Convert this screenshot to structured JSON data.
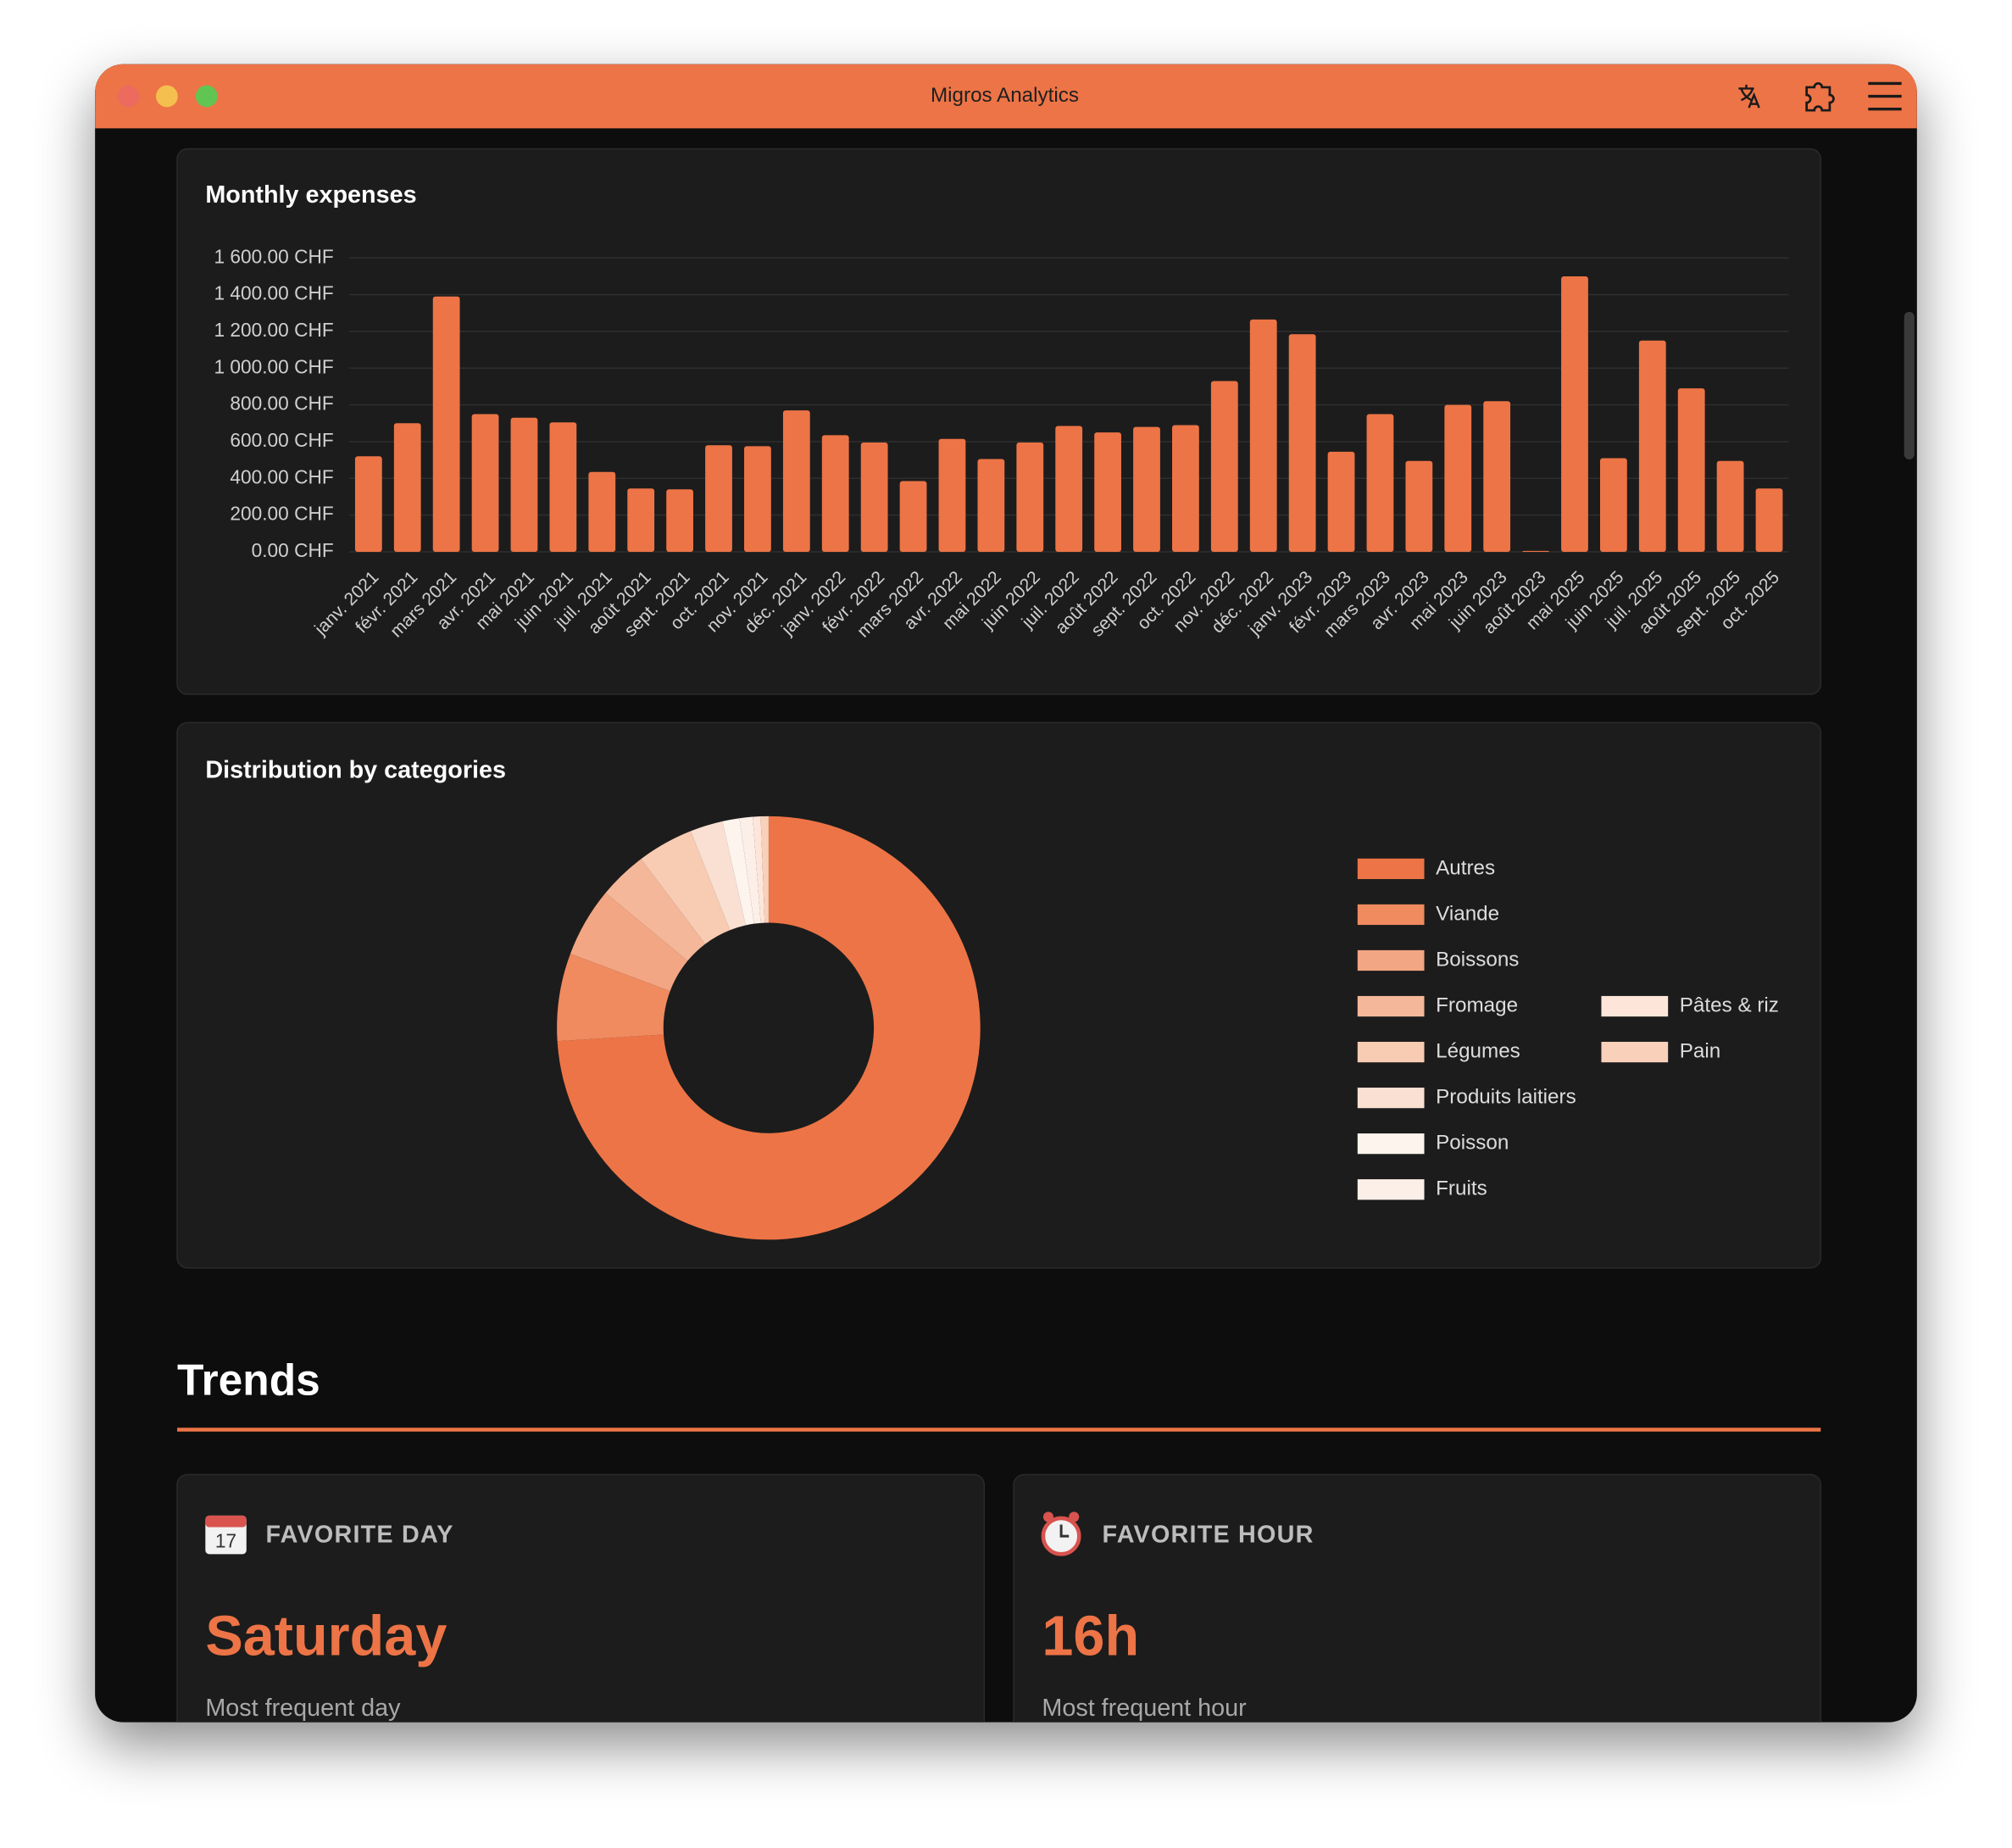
{
  "window": {
    "title": "Migros Analytics"
  },
  "chart_data": [
    {
      "type": "bar",
      "title": "Monthly expenses",
      "categories": [
        "janv. 2021",
        "févr. 2021",
        "mars 2021",
        "avr. 2021",
        "mai 2021",
        "juin 2021",
        "juil. 2021",
        "août 2021",
        "sept. 2021",
        "oct. 2021",
        "nov. 2021",
        "déc. 2021",
        "janv. 2022",
        "févr. 2022",
        "mars 2022",
        "avr. 2022",
        "mai 2022",
        "juin 2022",
        "juil. 2022",
        "août 2022",
        "sept. 2022",
        "oct. 2022",
        "nov. 2022",
        "déc. 2022",
        "janv. 2023",
        "févr. 2023",
        "mars 2023",
        "avr. 2023",
        "mai 2023",
        "juin 2023",
        "août 2023",
        "mai 2025",
        "juin 2025",
        "juil. 2025",
        "août 2025",
        "sept. 2025",
        "oct. 2025"
      ],
      "values": [
        520,
        700,
        1390,
        750,
        730,
        705,
        435,
        345,
        340,
        580,
        575,
        770,
        635,
        595,
        385,
        615,
        505,
        595,
        685,
        650,
        680,
        690,
        930,
        1265,
        1185,
        545,
        750,
        495,
        800,
        820,
        5,
        1500,
        510,
        1150,
        890,
        495,
        345
      ],
      "color": "#ed7446",
      "ylim": [
        0,
        1600
      ],
      "yticks": [
        {
          "value": 0,
          "label": "0.00 CHF"
        },
        {
          "value": 200,
          "label": "200.00 CHF"
        },
        {
          "value": 400,
          "label": "400.00 CHF"
        },
        {
          "value": 600,
          "label": "600.00 CHF"
        },
        {
          "value": 800,
          "label": "800.00 CHF"
        },
        {
          "value": 1000,
          "label": "1 000.00 CHF"
        },
        {
          "value": 1200,
          "label": "1 200.00 CHF"
        },
        {
          "value": 1400,
          "label": "1 400.00 CHF"
        },
        {
          "value": 1600,
          "label": "1 600.00 CHF"
        }
      ],
      "grid": true
    },
    {
      "type": "pie",
      "title": "Distribution by categories",
      "categories": [
        "Autres",
        "Viande",
        "Boissons",
        "Fromage",
        "Légumes",
        "Produits laitiers",
        "Poisson",
        "Fruits",
        "Pâtes & riz",
        "Pain"
      ],
      "values": [
        74,
        6.7,
        5.3,
        3.7,
        4.3,
        2.5,
        1.3,
        1,
        0.6,
        0.6
      ],
      "colors": [
        "#ed7446",
        "#f08a5f",
        "#f3a683",
        "#f5b799",
        "#f8cbb3",
        "#fae0d2",
        "#fdf4ee",
        "#fcefe8",
        "#fde5d9",
        "#f9d0ba"
      ],
      "donut": true
    }
  ],
  "trends": {
    "title": "Trends",
    "cards": [
      {
        "icon_label": "17",
        "label": "FAVORITE DAY",
        "value": "Saturday",
        "caption": "Most frequent day"
      },
      {
        "label": "FAVORITE HOUR",
        "value": "16h",
        "caption": "Most frequent hour"
      }
    ]
  }
}
